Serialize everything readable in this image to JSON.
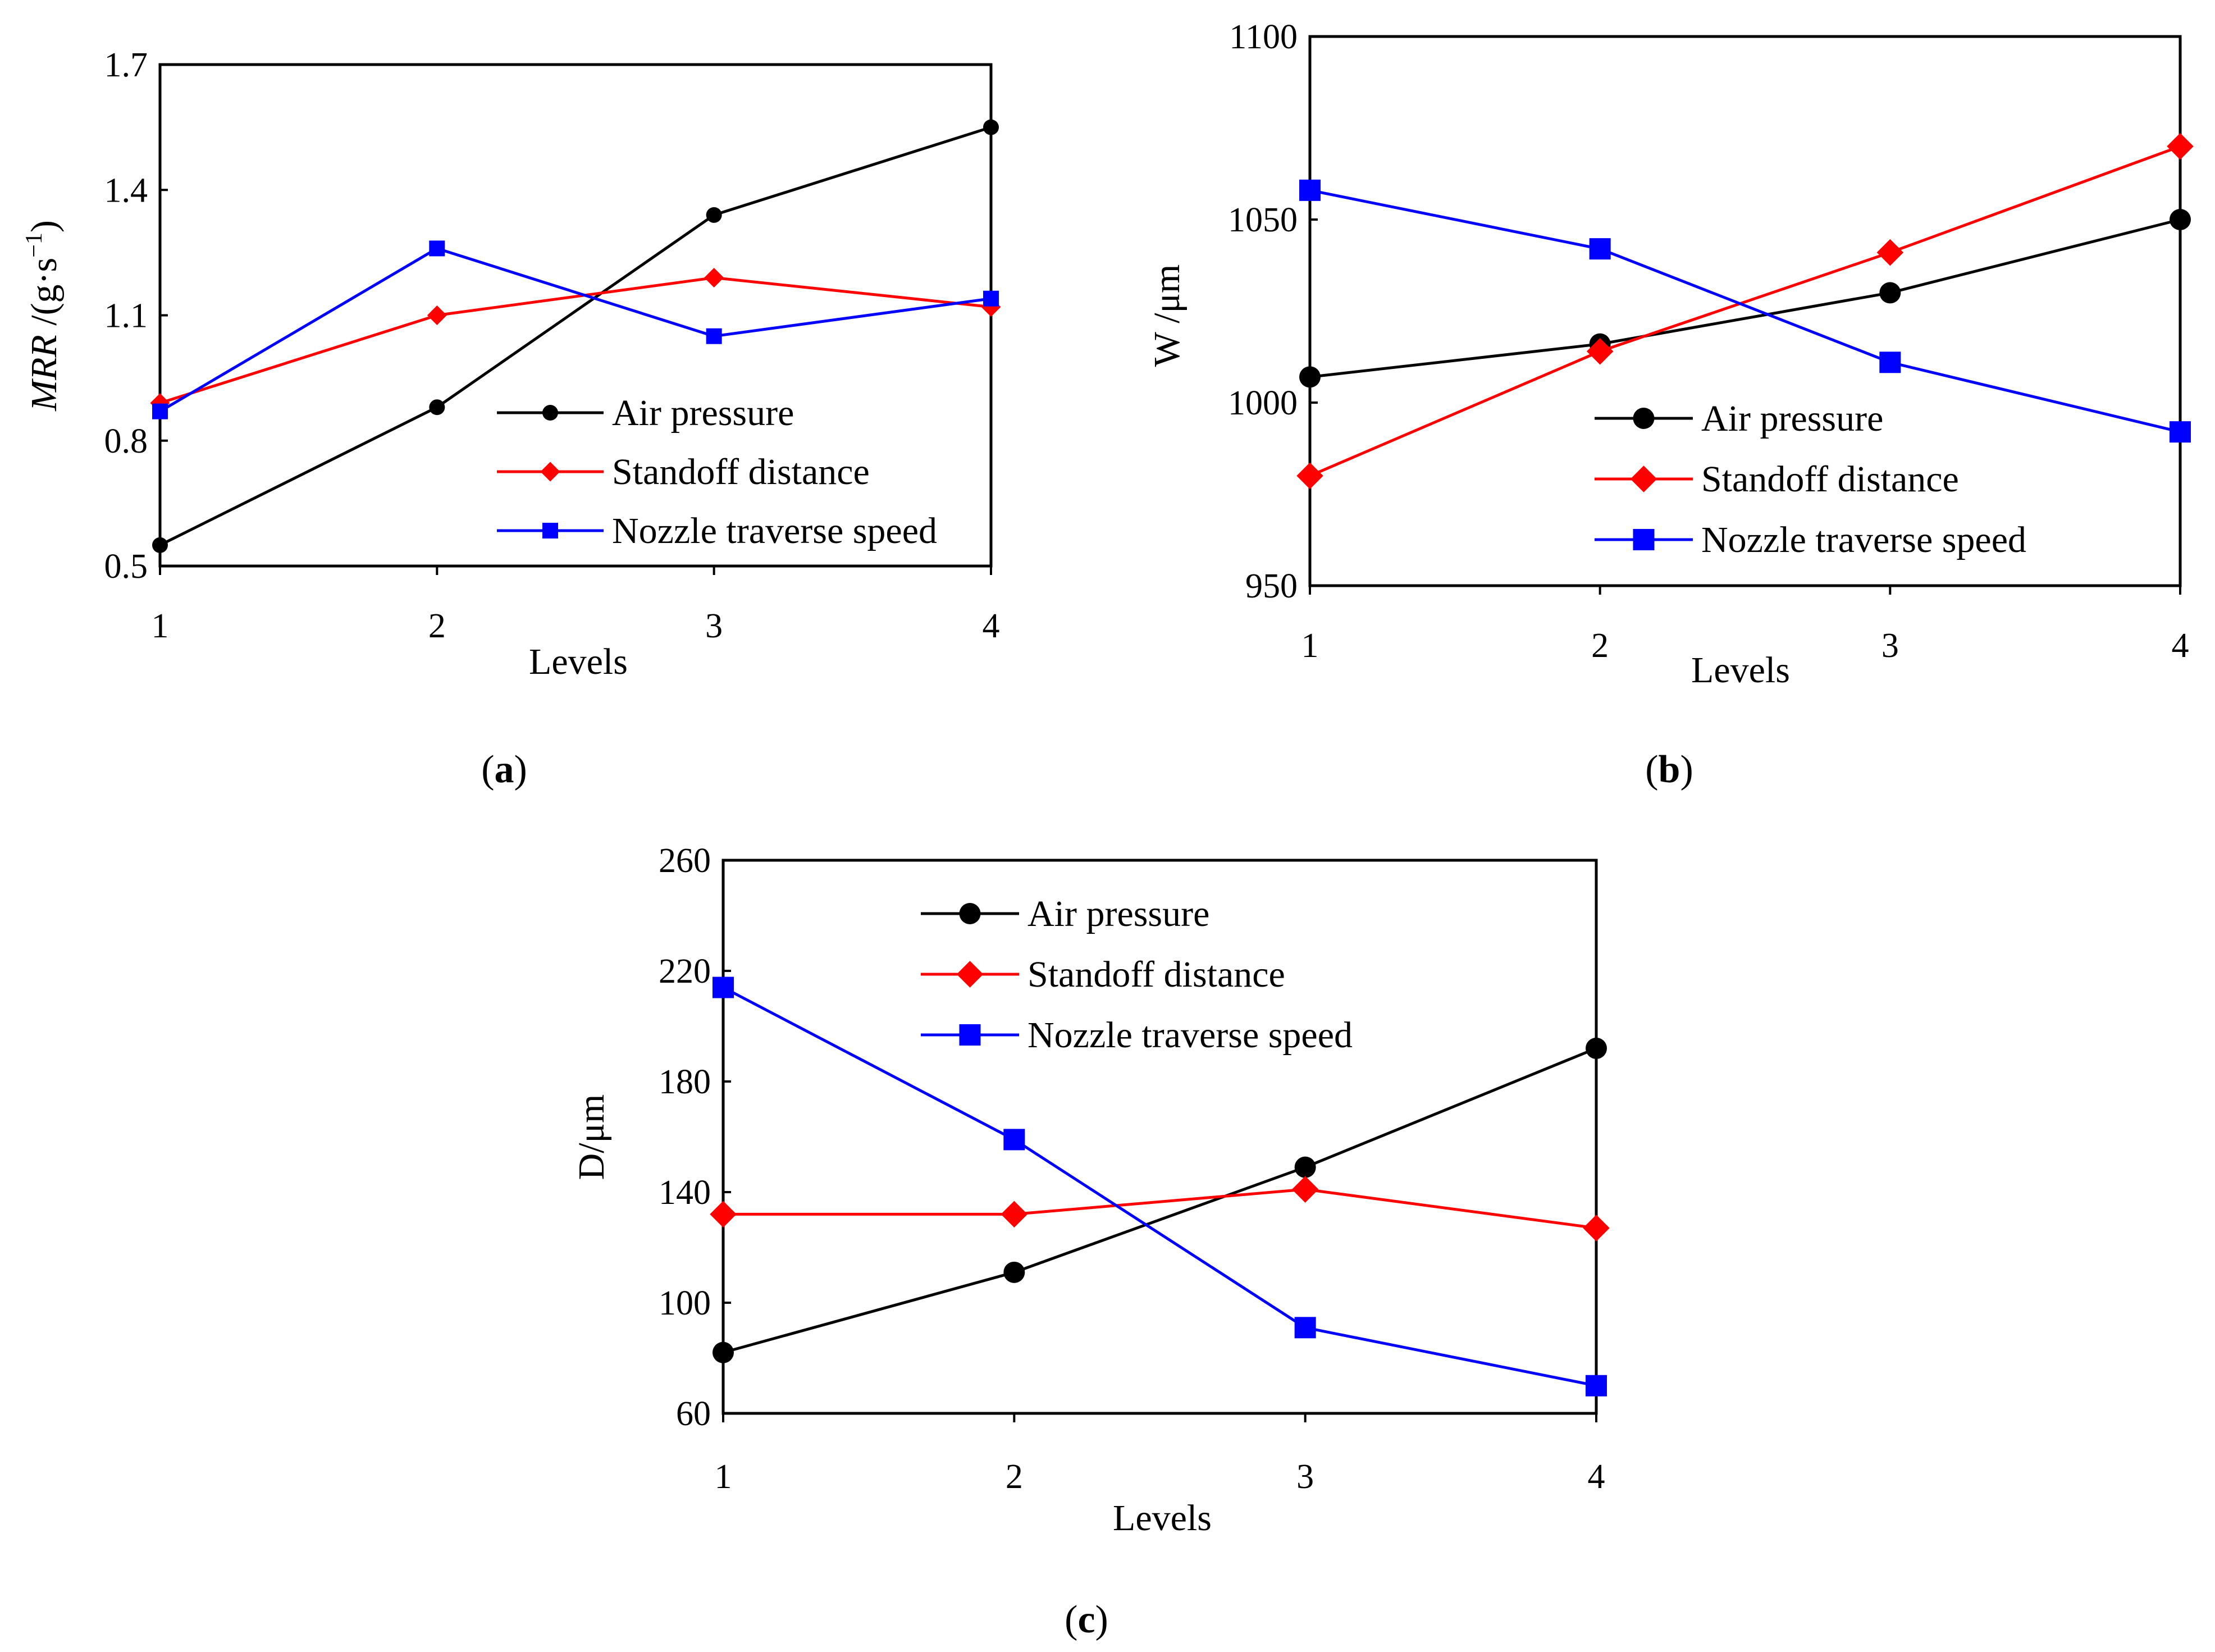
{
  "chart_data": [
    {
      "id": "a",
      "type": "line",
      "caption": "(a)",
      "caption_letter": "a",
      "xlabel": "Levels",
      "ylabel_main": "MRR",
      "ylabel_unit": " /(g·s",
      "ylabel_exp": "−1",
      "ylabel_close": ")",
      "x": [
        1,
        2,
        3,
        4
      ],
      "x_ticks": [
        "1",
        "2",
        "3",
        "4"
      ],
      "ylim": [
        0.5,
        1.7
      ],
      "y_ticks": [
        "0.5",
        "0.8",
        "1.1",
        "1.4",
        "1.7"
      ],
      "series": [
        {
          "name": "Air pressure",
          "color": "#000000",
          "marker": "circle",
          "values": [
            0.55,
            0.88,
            1.34,
            1.55
          ]
        },
        {
          "name": "Standoff distance",
          "color": "#ff0000",
          "marker": "diamond",
          "values": [
            0.89,
            1.1,
            1.19,
            1.12
          ]
        },
        {
          "name": "Nozzle traverse speed",
          "color": "#0000ff",
          "marker": "square",
          "values": [
            0.87,
            1.26,
            1.05,
            1.14
          ]
        }
      ]
    },
    {
      "id": "b",
      "type": "line",
      "caption": "(b)",
      "caption_letter": "b",
      "xlabel": "Levels",
      "ylabel": "W /μm",
      "x": [
        1,
        2,
        3,
        4
      ],
      "x_ticks": [
        "1",
        "2",
        "3",
        "4"
      ],
      "ylim": [
        950,
        1100
      ],
      "y_ticks": [
        "950",
        "1000",
        "1050",
        "1100"
      ],
      "series": [
        {
          "name": "Air pressure",
          "color": "#000000",
          "marker": "circle",
          "values": [
            1007,
            1016,
            1030,
            1050
          ]
        },
        {
          "name": "Standoff distance",
          "color": "#ff0000",
          "marker": "diamond",
          "values": [
            980,
            1014,
            1041,
            1070
          ]
        },
        {
          "name": "Nozzle traverse speed",
          "color": "#0000ff",
          "marker": "square",
          "values": [
            1058,
            1042,
            1011,
            992
          ]
        }
      ]
    },
    {
      "id": "c",
      "type": "line",
      "caption": "(c)",
      "caption_letter": "c",
      "xlabel": "Levels",
      "ylabel": "D/μm",
      "x": [
        1,
        2,
        3,
        4
      ],
      "x_ticks": [
        "1",
        "2",
        "3",
        "4"
      ],
      "ylim": [
        60,
        260
      ],
      "y_ticks": [
        "60",
        "100",
        "140",
        "180",
        "220",
        "260"
      ],
      "series": [
        {
          "name": "Air pressure",
          "color": "#000000",
          "marker": "circle",
          "values": [
            82,
            111,
            149,
            192
          ]
        },
        {
          "name": "Standoff distance",
          "color": "#ff0000",
          "marker": "diamond",
          "values": [
            132,
            132,
            141,
            127
          ]
        },
        {
          "name": "Nozzle traverse speed",
          "color": "#0000ff",
          "marker": "square",
          "values": [
            214,
            159,
            91,
            70
          ]
        }
      ]
    }
  ]
}
